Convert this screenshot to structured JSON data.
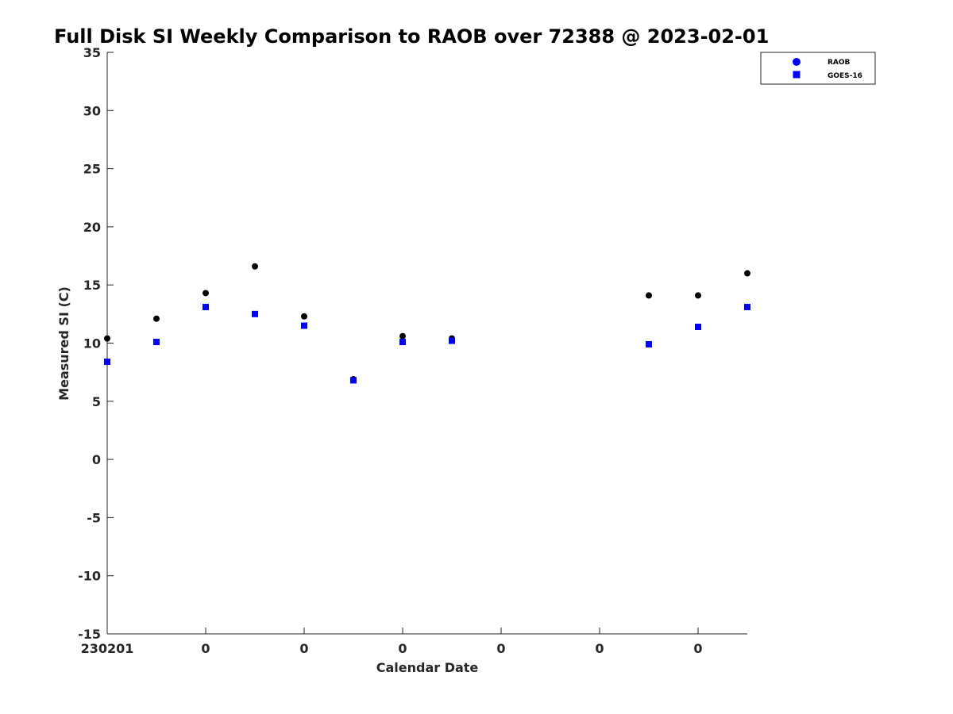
{
  "chart_data": {
    "type": "scatter",
    "title": "Full Disk SI Weekly Comparison to RAOB over 72388 @ 2023-02-01",
    "xlabel": "Calendar Date",
    "ylabel": "Measured SI (C)",
    "xlim": [
      0,
      13
    ],
    "ylim": [
      -15,
      35
    ],
    "y_ticks": [
      -15,
      -10,
      -5,
      0,
      5,
      10,
      15,
      20,
      25,
      30,
      35
    ],
    "x_ticks": [
      {
        "x": 0,
        "label": "230201"
      },
      {
        "x": 2,
        "label": "0"
      },
      {
        "x": 4,
        "label": "0"
      },
      {
        "x": 6,
        "label": "0"
      },
      {
        "x": 8,
        "label": "0"
      },
      {
        "x": 10,
        "label": "0"
      },
      {
        "x": 12,
        "label": "0"
      }
    ],
    "legend_position": "top-right",
    "series": [
      {
        "name": "RAOB",
        "marker": "circle",
        "color": "#000000",
        "legend_color": "#0000ff",
        "points": [
          {
            "x": 0,
            "y": 10.4
          },
          {
            "x": 1,
            "y": 12.1
          },
          {
            "x": 2,
            "y": 14.3
          },
          {
            "x": 3,
            "y": 16.6
          },
          {
            "x": 4,
            "y": 12.3
          },
          {
            "x": 5,
            "y": 6.9
          },
          {
            "x": 6,
            "y": 10.6
          },
          {
            "x": 7,
            "y": 10.4
          },
          {
            "x": 11,
            "y": 14.1
          },
          {
            "x": 12,
            "y": 14.1
          },
          {
            "x": 13,
            "y": 16.0
          }
        ]
      },
      {
        "name": "GOES-16",
        "marker": "square",
        "color": "#0000ff",
        "legend_color": "#0000ff",
        "points": [
          {
            "x": 0,
            "y": 8.4
          },
          {
            "x": 1,
            "y": 10.1
          },
          {
            "x": 2,
            "y": 13.1
          },
          {
            "x": 3,
            "y": 12.5
          },
          {
            "x": 4,
            "y": 11.5
          },
          {
            "x": 5,
            "y": 6.8
          },
          {
            "x": 6,
            "y": 10.1
          },
          {
            "x": 7,
            "y": 10.2
          },
          {
            "x": 11,
            "y": 9.9
          },
          {
            "x": 12,
            "y": 11.4
          },
          {
            "x": 13,
            "y": 13.1
          }
        ]
      }
    ]
  }
}
